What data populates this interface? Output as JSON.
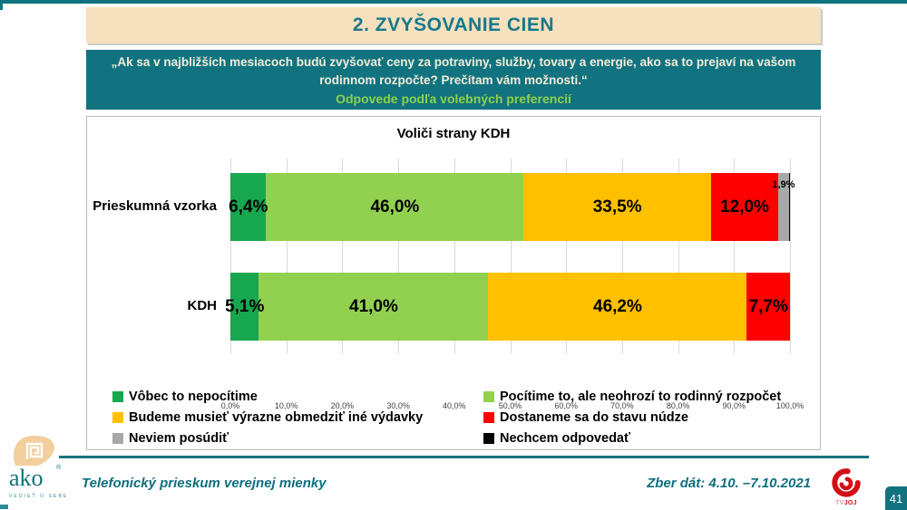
{
  "accent": {
    "teal": "#11737f",
    "header_bg": "#f6e0bd",
    "title_color": "#17788a",
    "subtitle_green": "#8ed04b"
  },
  "header": {
    "title": "2. ZVYŠOVANIE CIEN"
  },
  "question_box": {
    "question": "„Ak sa v najbližších mesiacoch budú zvyšovať ceny za potraviny, služby, tovary a energie, ako sa to prejaví na vašom rodinnom rozpočte? Prečítam vám možnosti.“",
    "subtitle": "Odpovede podľa volebných preferencií"
  },
  "chart_data": {
    "type": "bar",
    "stacked": true,
    "orientation": "horizontal",
    "title": "Voliči strany KDH",
    "categories": [
      "Prieskumná vzorka",
      "KDH"
    ],
    "series": [
      {
        "name": "Vôbec to nepocítime",
        "color": "#17a74e",
        "values": [
          6.4,
          5.1
        ],
        "labels": [
          "6,4%",
          "5,1%"
        ]
      },
      {
        "name": "Pocítime to, ale neohrozí to rodinný rozpočet",
        "color": "#92d050",
        "values": [
          46.0,
          41.0
        ],
        "labels": [
          "46,0%",
          "41,0%"
        ]
      },
      {
        "name": "Budeme musieť výrazne obmedziť iné výdavky",
        "color": "#ffc000",
        "values": [
          33.5,
          46.2
        ],
        "labels": [
          "33,5%",
          "46,2%"
        ]
      },
      {
        "name": "Dostaneme sa do stavu núdze",
        "color": "#fe0000",
        "values": [
          12.0,
          7.7
        ],
        "labels": [
          "12,0%",
          "7,7%"
        ]
      },
      {
        "name": "Neviem posúdiť",
        "color": "#a8a8a8",
        "values": [
          1.9,
          0
        ],
        "labels": [
          "1,9%",
          ""
        ],
        "label_outside": true
      },
      {
        "name": "Nechcem odpovedať",
        "color": "#000000",
        "values": [
          0.2,
          0
        ],
        "labels": [
          "",
          ""
        ]
      }
    ],
    "xlim": [
      0,
      100
    ],
    "x_ticks": [
      "0,0%",
      "10,0%",
      "20,0%",
      "30,0%",
      "40,0%",
      "50,0%",
      "60,0%",
      "70,0%",
      "80,0%",
      "90,0%",
      "100,0%"
    ],
    "grid": true,
    "legend_position": "bottom"
  },
  "footer": {
    "logo_text": "ako",
    "logo_reg": "®",
    "logo_tagline": "VEDIEŤ O SEBE",
    "left_text": "Telefonický prieskum verejnej mienky",
    "right_text": "Zber dát: 4.10. –7.10.2021",
    "tv_logo_tv": "TV",
    "tv_logo_joj": "JOJ",
    "page_number": "41"
  }
}
